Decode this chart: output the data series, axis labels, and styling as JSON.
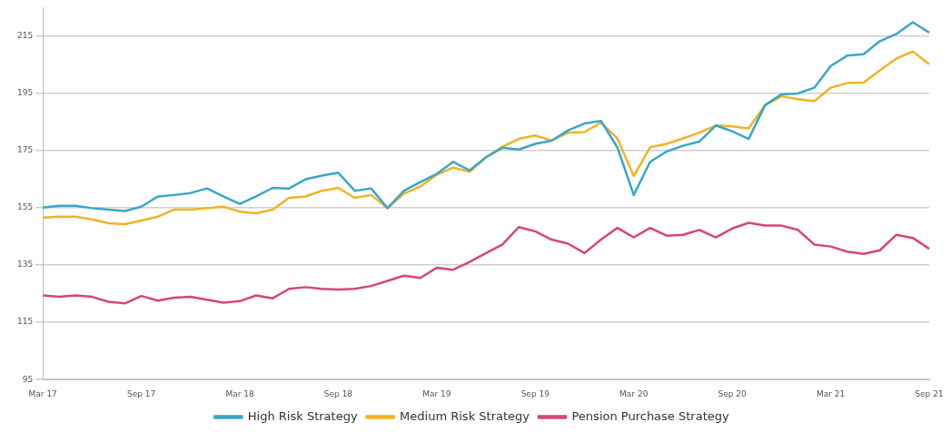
{
  "chart_data": {
    "type": "line",
    "categories": [
      "Mar 17",
      null,
      null,
      null,
      null,
      null,
      "Sep 17",
      null,
      null,
      null,
      null,
      null,
      "Mar 18",
      null,
      null,
      null,
      null,
      null,
      "Sep 18",
      null,
      null,
      null,
      null,
      null,
      "Mar 19",
      null,
      null,
      null,
      null,
      null,
      "Sep 19",
      null,
      null,
      null,
      null,
      null,
      "Mar 20",
      null,
      null,
      null,
      null,
      null,
      "Sep 20",
      null,
      null,
      null,
      null,
      null,
      "Mar 21",
      null,
      null,
      null,
      null,
      null,
      "Sep 21"
    ],
    "series": [
      {
        "name": "High Risk Strategy",
        "color": "#3aa7c7",
        "values": [
          155.1,
          155.7,
          155.7,
          154.9,
          154.4,
          153.9,
          155.4,
          159.0,
          159.5,
          160.2,
          161.8,
          159.0,
          156.4,
          159.0,
          162.0,
          161.8,
          165.0,
          166.3,
          167.3,
          161.0,
          161.8,
          154.9,
          161.0,
          164.0,
          166.9,
          171.1,
          168.1,
          172.7,
          176.0,
          175.4,
          177.4,
          178.5,
          182.1,
          184.5,
          185.4,
          176.2,
          159.5,
          171.1,
          174.7,
          176.7,
          178.2,
          183.8,
          181.8,
          179.1,
          190.9,
          194.7,
          195.0,
          197.0,
          204.6,
          208.2,
          208.7,
          213.3,
          215.8,
          219.9,
          216.3
        ]
      },
      {
        "name": "Medium Risk Strategy",
        "color": "#f0b323",
        "values": [
          151.6,
          151.9,
          151.9,
          151.0,
          149.6,
          149.3,
          150.6,
          151.9,
          154.4,
          154.4,
          154.9,
          155.4,
          153.7,
          153.1,
          154.4,
          158.5,
          159.0,
          161.0,
          162.0,
          158.5,
          159.5,
          154.9,
          160.0,
          162.5,
          166.6,
          169.1,
          167.6,
          172.7,
          176.4,
          179.1,
          180.3,
          178.5,
          181.3,
          181.5,
          184.8,
          179.3,
          166.1,
          176.2,
          177.4,
          179.3,
          181.3,
          183.8,
          183.5,
          182.8,
          190.9,
          194.0,
          193.0,
          192.3,
          197.0,
          198.6,
          198.8,
          203.1,
          207.2,
          209.7,
          205.2
        ]
      },
      {
        "name": "Pension Purchase Strategy",
        "color": "#d6457a",
        "values": [
          124.4,
          123.9,
          124.4,
          123.9,
          122.2,
          121.6,
          124.2,
          122.6,
          123.6,
          123.9,
          122.9,
          121.9,
          122.4,
          124.4,
          123.4,
          126.7,
          127.3,
          126.7,
          126.5,
          126.7,
          127.7,
          129.5,
          131.3,
          130.5,
          134.1,
          133.4,
          136.1,
          139.2,
          142.2,
          148.3,
          146.8,
          143.9,
          142.5,
          139.2,
          143.9,
          148.0,
          144.7,
          148.0,
          145.3,
          145.6,
          147.3,
          144.7,
          147.8,
          149.8,
          148.8,
          148.8,
          147.3,
          142.2,
          141.5,
          139.7,
          138.9,
          140.2,
          145.6,
          144.5,
          140.7
        ]
      }
    ],
    "ylim": [
      95,
      225
    ],
    "yticks": [
      95,
      115,
      135,
      155,
      175,
      195,
      215
    ],
    "grid": "y",
    "legend": "bottom",
    "marker": "none",
    "line_style": "solid"
  }
}
